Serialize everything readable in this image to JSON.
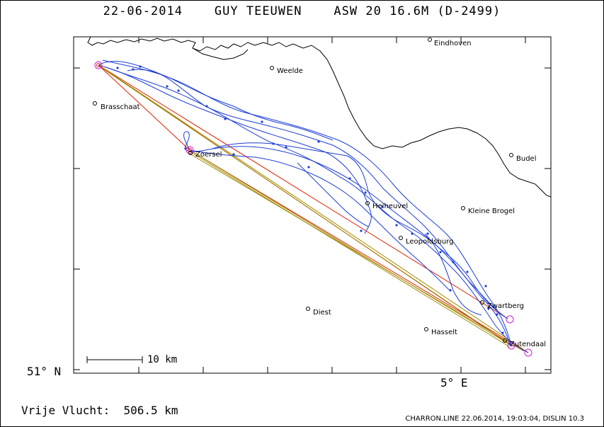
{
  "title": "22-06-2014    GUY TEEUWEN    ASW 20 16.6M (D-2499)",
  "axis": {
    "lat_label": "51° N",
    "lon_label": "5° E"
  },
  "scale": {
    "label": "10 km"
  },
  "towns": [
    {
      "name": "Eindhoven"
    },
    {
      "name": "Weelde"
    },
    {
      "name": "Brasschaat"
    },
    {
      "name": "Zoersel"
    },
    {
      "name": "Budel"
    },
    {
      "name": "Kleine Brogel"
    },
    {
      "name": "Heiheuvel"
    },
    {
      "name": "Leopoldsburg"
    },
    {
      "name": "Diest"
    },
    {
      "name": "Zwartberg"
    },
    {
      "name": "Hasselt"
    },
    {
      "name": "Zutendaal"
    }
  ],
  "footer": {
    "distance": "Vrije Vlucht:  506.5 km",
    "program": "CHARRON.LINE 22.06.2014, 19:03:04, DISLIN 10.3"
  },
  "colors": {
    "track": "#1f3fd8",
    "leg_red": "#e02000",
    "leg_olive": "#a08a00",
    "turnpoint": "#d020d0",
    "border": "#000000"
  }
}
